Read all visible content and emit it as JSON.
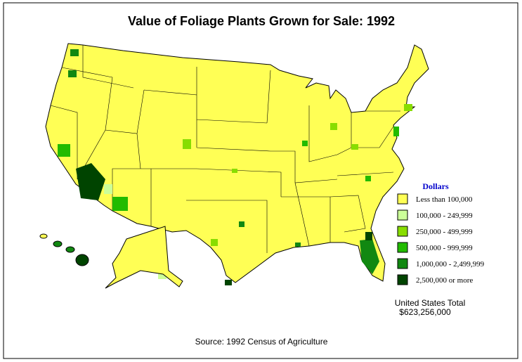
{
  "title": "Value of Foliage Plants Grown for Sale:  1992",
  "legend": {
    "title": "Dollars",
    "items": [
      {
        "label": "Less than 100,000",
        "color": "#ffff55"
      },
      {
        "label": "100,000 - 249,999",
        "color": "#ccff99"
      },
      {
        "label": "250,000 - 499,999",
        "color": "#88dd00"
      },
      {
        "label": "500,000 - 999,999",
        "color": "#22bb00"
      },
      {
        "label": "1,000,000 - 2,499,999",
        "color": "#118811"
      },
      {
        "label": "2,500,000 or more",
        "color": "#004400"
      }
    ]
  },
  "total": {
    "label": "United States Total",
    "value": "$623,256,000"
  },
  "source": "Source:  1992 Census of Agriculture"
}
